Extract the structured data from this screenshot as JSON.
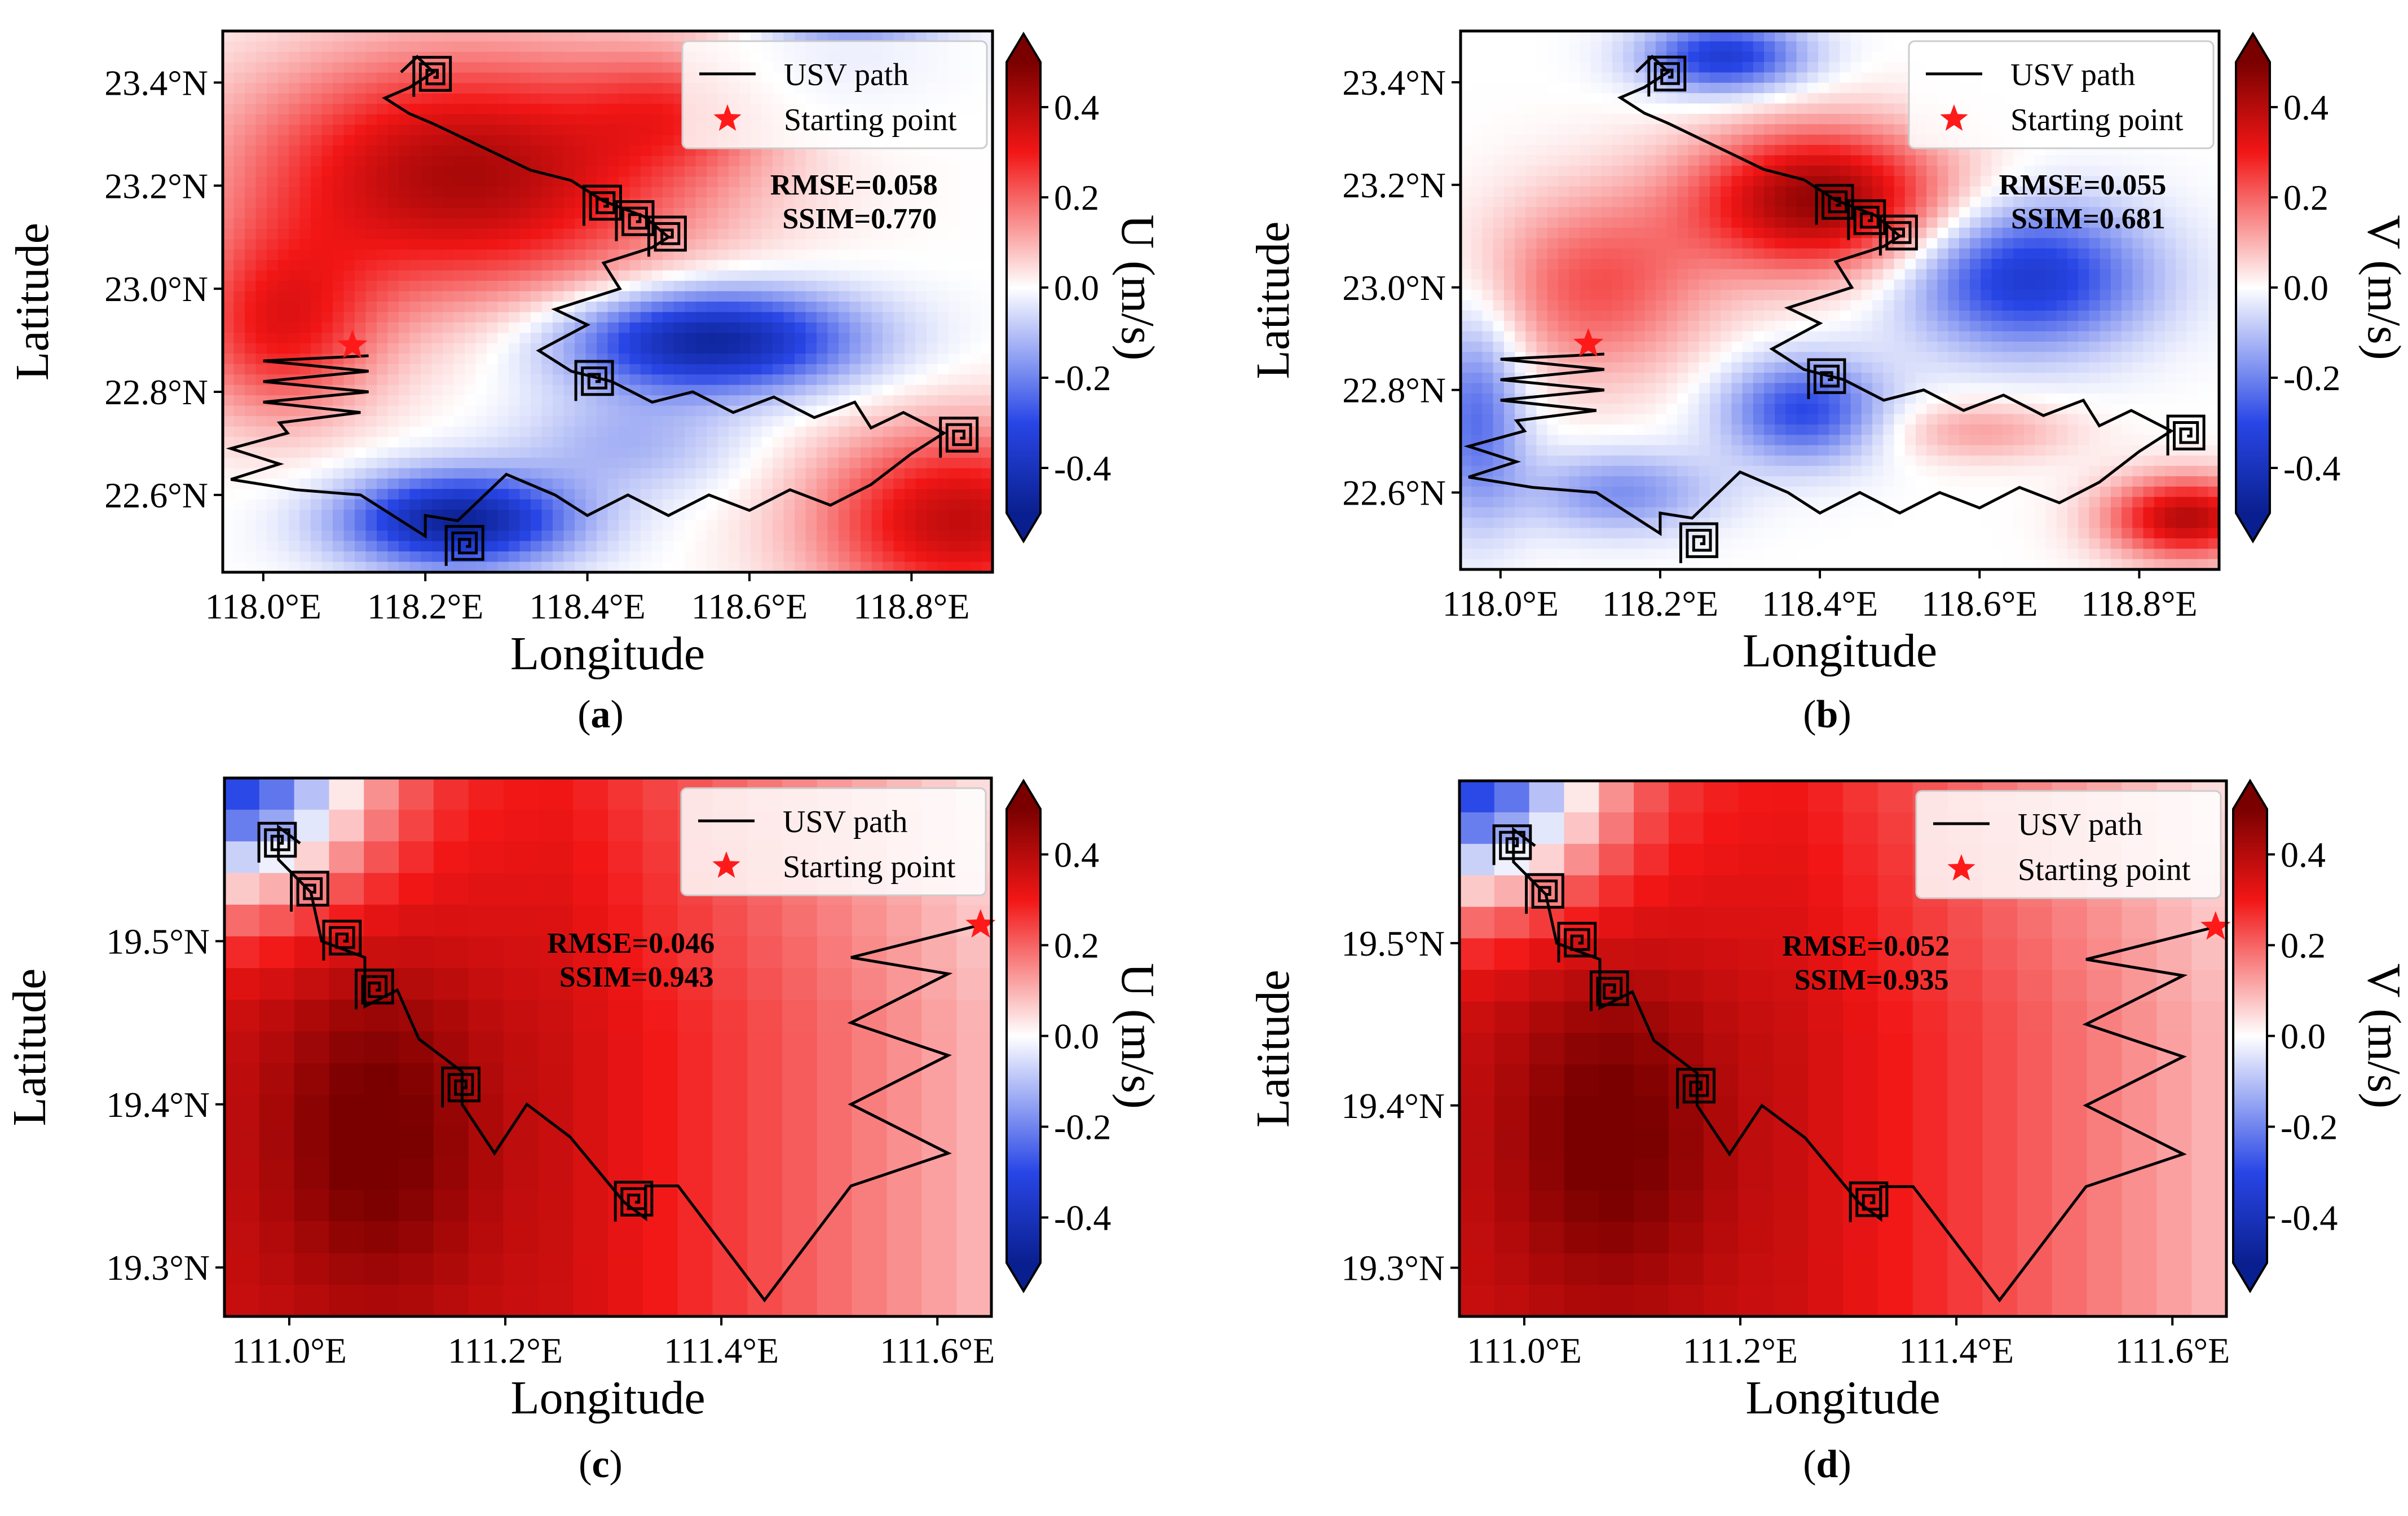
{
  "palette": {
    "negative": "#0a1f8f",
    "neutral": "#ffffff",
    "positive": "#f21616",
    "darkest_positive": "#7a0000",
    "star": "#ff1a1a",
    "path": "#000000"
  },
  "legend": {
    "path_label": "USV path",
    "start_label": "Starting point"
  },
  "chart_data": [
    {
      "type": "heatmap",
      "caption_open": "(",
      "caption_letter": "a",
      "caption_close": ")",
      "component": "U",
      "xlabel": "Longitude",
      "ylabel": "Latitude",
      "colorbar_label": "U (m/s)",
      "xlim": [
        117.95,
        118.9
      ],
      "ylim": [
        22.45,
        23.5
      ],
      "clim": [
        -0.5,
        0.5
      ],
      "xticks": [
        118.0,
        118.2,
        118.4,
        118.6,
        118.8
      ],
      "xtick_labels": [
        "118.0°E",
        "118.2°E",
        "118.4°E",
        "118.6°E",
        "118.8°E"
      ],
      "yticks": [
        22.6,
        22.8,
        23.0,
        23.2,
        23.4
      ],
      "ytick_labels": [
        "22.6°N",
        "22.8°N",
        "23.0°N",
        "23.2°N",
        "23.4°N"
      ],
      "cbar_ticks": [
        -0.4,
        -0.2,
        0.0,
        0.2,
        0.4
      ],
      "cbar_tick_labels": [
        "-0.4",
        "-0.2",
        "0.0",
        "0.2",
        "0.4"
      ],
      "rmse": "RMSE=0.058",
      "ssim": "SSIM=0.770",
      "start_point": [
        118.11,
        22.89
      ],
      "field_blobs": [
        {
          "x": 118.25,
          "y": 23.22,
          "sx": 0.28,
          "sy": 0.24,
          "a": 0.42
        },
        {
          "x": 118.02,
          "y": 22.92,
          "sx": 0.12,
          "sy": 0.18,
          "a": 0.28
        },
        {
          "x": 118.55,
          "y": 22.9,
          "sx": 0.18,
          "sy": 0.1,
          "a": -0.48
        },
        {
          "x": 118.72,
          "y": 23.45,
          "sx": 0.12,
          "sy": 0.1,
          "a": -0.18
        },
        {
          "x": 118.24,
          "y": 22.55,
          "sx": 0.14,
          "sy": 0.09,
          "a": -0.48
        },
        {
          "x": 118.86,
          "y": 22.55,
          "sx": 0.18,
          "sy": 0.18,
          "a": 0.38
        },
        {
          "x": 118.45,
          "y": 22.7,
          "sx": 0.14,
          "sy": 0.1,
          "a": -0.12
        },
        {
          "x": 118.52,
          "y": 23.35,
          "sx": 0.12,
          "sy": 0.12,
          "a": 0.16
        }
      ],
      "path": [
        [
          118.13,
          22.87
        ],
        [
          118.0,
          22.86
        ],
        [
          118.13,
          22.84
        ],
        [
          118.0,
          22.82
        ],
        [
          118.13,
          22.8
        ],
        [
          118.0,
          22.78
        ],
        [
          118.12,
          22.76
        ],
        [
          118.02,
          22.74
        ],
        [
          118.03,
          22.72
        ],
        [
          117.96,
          22.69
        ],
        [
          118.02,
          22.66
        ],
        [
          117.96,
          22.63
        ],
        [
          118.04,
          22.61
        ],
        [
          118.12,
          22.6
        ],
        [
          118.18,
          22.54
        ],
        [
          118.2,
          22.52
        ],
        [
          118.2,
          22.56
        ],
        [
          118.24,
          22.55
        ],
        [
          118.3,
          22.64
        ],
        [
          118.36,
          22.6
        ],
        [
          118.4,
          22.56
        ],
        [
          118.45,
          22.6
        ],
        [
          118.5,
          22.56
        ],
        [
          118.55,
          22.6
        ],
        [
          118.6,
          22.57
        ],
        [
          118.65,
          22.61
        ],
        [
          118.7,
          22.58
        ],
        [
          118.75,
          22.62
        ],
        [
          118.8,
          22.68
        ],
        [
          118.84,
          22.72
        ],
        [
          118.79,
          22.76
        ],
        [
          118.75,
          22.73
        ],
        [
          118.73,
          22.78
        ],
        [
          118.68,
          22.75
        ],
        [
          118.63,
          22.79
        ],
        [
          118.58,
          22.76
        ],
        [
          118.53,
          22.8
        ],
        [
          118.48,
          22.78
        ],
        [
          118.43,
          22.82
        ],
        [
          118.38,
          22.84
        ],
        [
          118.34,
          22.88
        ],
        [
          118.4,
          22.93
        ],
        [
          118.36,
          22.96
        ],
        [
          118.44,
          23.0
        ],
        [
          118.42,
          23.05
        ],
        [
          118.48,
          23.08
        ],
        [
          118.5,
          23.1
        ],
        [
          118.47,
          23.14
        ],
        [
          118.42,
          23.17
        ],
        [
          118.38,
          23.21
        ],
        [
          118.33,
          23.23
        ],
        [
          118.29,
          23.26
        ],
        [
          118.25,
          23.29
        ],
        [
          118.21,
          23.32
        ],
        [
          118.18,
          23.34
        ],
        [
          118.15,
          23.37
        ],
        [
          118.18,
          23.39
        ],
        [
          118.21,
          23.42
        ],
        [
          118.19,
          23.45
        ],
        [
          118.17,
          23.42
        ]
      ],
      "spiral_centers": [
        [
          118.21,
          23.41
        ],
        [
          118.42,
          23.16
        ],
        [
          118.46,
          23.13
        ],
        [
          118.5,
          23.1
        ],
        [
          118.41,
          22.82
        ],
        [
          118.86,
          22.71
        ],
        [
          118.25,
          22.5
        ]
      ]
    },
    {
      "type": "heatmap",
      "caption_open": "(",
      "caption_letter": "b",
      "caption_close": ")",
      "component": "V",
      "xlabel": "Longitude",
      "ylabel": "Latitude",
      "colorbar_label": "V (m/s)",
      "xlim": [
        117.95,
        118.9
      ],
      "ylim": [
        22.45,
        23.5
      ],
      "clim": [
        -0.5,
        0.5
      ],
      "xticks": [
        118.0,
        118.2,
        118.4,
        118.6,
        118.8
      ],
      "xtick_labels": [
        "118.0°E",
        "118.2°E",
        "118.4°E",
        "118.6°E",
        "118.8°E"
      ],
      "yticks": [
        22.6,
        22.8,
        23.0,
        23.2,
        23.4
      ],
      "ytick_labels": [
        "22.6°N",
        "22.8°N",
        "23.0°N",
        "23.2°N",
        "23.4°N"
      ],
      "cbar_ticks": [
        -0.4,
        -0.2,
        0.0,
        0.2,
        0.4
      ],
      "cbar_tick_labels": [
        "-0.4",
        "-0.2",
        "0.0",
        "0.2",
        "0.4"
      ],
      "rmse": "RMSE=0.055",
      "ssim": "SSIM=0.681",
      "start_point": [
        118.11,
        22.89
      ],
      "field_blobs": [
        {
          "x": 118.4,
          "y": 23.17,
          "sx": 0.16,
          "sy": 0.14,
          "a": 0.46
        },
        {
          "x": 118.12,
          "y": 23.0,
          "sx": 0.14,
          "sy": 0.18,
          "a": 0.22
        },
        {
          "x": 118.28,
          "y": 23.45,
          "sx": 0.1,
          "sy": 0.07,
          "a": -0.35
        },
        {
          "x": 118.66,
          "y": 23.02,
          "sx": 0.15,
          "sy": 0.14,
          "a": -0.36
        },
        {
          "x": 117.97,
          "y": 22.75,
          "sx": 0.06,
          "sy": 0.2,
          "a": -0.24
        },
        {
          "x": 118.38,
          "y": 22.76,
          "sx": 0.1,
          "sy": 0.1,
          "a": -0.3
        },
        {
          "x": 118.15,
          "y": 22.6,
          "sx": 0.12,
          "sy": 0.08,
          "a": -0.18
        },
        {
          "x": 118.86,
          "y": 22.55,
          "sx": 0.1,
          "sy": 0.08,
          "a": 0.4
        },
        {
          "x": 118.6,
          "y": 22.72,
          "sx": 0.12,
          "sy": 0.06,
          "a": 0.12
        }
      ],
      "path": [
        [
          118.13,
          22.87
        ],
        [
          118.0,
          22.86
        ],
        [
          118.13,
          22.84
        ],
        [
          118.0,
          22.82
        ],
        [
          118.13,
          22.8
        ],
        [
          118.0,
          22.78
        ],
        [
          118.12,
          22.76
        ],
        [
          118.02,
          22.74
        ],
        [
          118.03,
          22.72
        ],
        [
          117.96,
          22.69
        ],
        [
          118.02,
          22.66
        ],
        [
          117.96,
          22.63
        ],
        [
          118.04,
          22.61
        ],
        [
          118.12,
          22.6
        ],
        [
          118.18,
          22.54
        ],
        [
          118.2,
          22.52
        ],
        [
          118.2,
          22.56
        ],
        [
          118.24,
          22.55
        ],
        [
          118.3,
          22.64
        ],
        [
          118.36,
          22.6
        ],
        [
          118.4,
          22.56
        ],
        [
          118.45,
          22.6
        ],
        [
          118.5,
          22.56
        ],
        [
          118.55,
          22.6
        ],
        [
          118.6,
          22.57
        ],
        [
          118.65,
          22.61
        ],
        [
          118.7,
          22.58
        ],
        [
          118.75,
          22.62
        ],
        [
          118.8,
          22.68
        ],
        [
          118.84,
          22.72
        ],
        [
          118.79,
          22.76
        ],
        [
          118.75,
          22.73
        ],
        [
          118.73,
          22.78
        ],
        [
          118.68,
          22.75
        ],
        [
          118.63,
          22.79
        ],
        [
          118.58,
          22.76
        ],
        [
          118.53,
          22.8
        ],
        [
          118.48,
          22.78
        ],
        [
          118.43,
          22.82
        ],
        [
          118.38,
          22.84
        ],
        [
          118.34,
          22.88
        ],
        [
          118.4,
          22.93
        ],
        [
          118.36,
          22.96
        ],
        [
          118.44,
          23.0
        ],
        [
          118.42,
          23.05
        ],
        [
          118.48,
          23.08
        ],
        [
          118.5,
          23.1
        ],
        [
          118.47,
          23.14
        ],
        [
          118.42,
          23.17
        ],
        [
          118.38,
          23.21
        ],
        [
          118.33,
          23.23
        ],
        [
          118.29,
          23.26
        ],
        [
          118.25,
          23.29
        ],
        [
          118.21,
          23.32
        ],
        [
          118.18,
          23.34
        ],
        [
          118.15,
          23.37
        ],
        [
          118.18,
          23.39
        ],
        [
          118.21,
          23.42
        ],
        [
          118.19,
          23.45
        ],
        [
          118.17,
          23.42
        ]
      ],
      "spiral_centers": [
        [
          118.21,
          23.41
        ],
        [
          118.42,
          23.16
        ],
        [
          118.46,
          23.13
        ],
        [
          118.5,
          23.1
        ],
        [
          118.41,
          22.82
        ],
        [
          118.86,
          22.71
        ],
        [
          118.25,
          22.5
        ]
      ]
    },
    {
      "type": "heatmap",
      "caption_open": "(",
      "caption_letter": "c",
      "caption_close": ")",
      "component": "U",
      "xlabel": "Longitude",
      "ylabel": "Latitude",
      "colorbar_label": "U (m/s)",
      "xlim": [
        110.94,
        111.65
      ],
      "ylim": [
        19.27,
        19.6
      ],
      "clim": [
        -0.5,
        0.5
      ],
      "xticks": [
        111.0,
        111.2,
        111.4,
        111.6
      ],
      "xtick_labels": [
        "111.0°E",
        "111.2°E",
        "111.4°E",
        "111.6°E"
      ],
      "yticks": [
        19.3,
        19.4,
        19.5
      ],
      "ytick_labels": [
        "19.3°N",
        "19.4°N",
        "19.5°N"
      ],
      "cbar_ticks": [
        -0.4,
        -0.2,
        0.0,
        0.2,
        0.4
      ],
      "cbar_tick_labels": [
        "-0.4",
        "-0.2",
        "0.0",
        "0.2",
        "0.4"
      ],
      "rmse": "RMSE=0.046",
      "ssim": "SSIM=0.943",
      "start_point": [
        111.64,
        19.51
      ],
      "path": [
        [
          111.64,
          19.51
        ],
        [
          111.52,
          19.49
        ],
        [
          111.61,
          19.48
        ],
        [
          111.52,
          19.45
        ],
        [
          111.61,
          19.43
        ],
        [
          111.52,
          19.4
        ],
        [
          111.61,
          19.37
        ],
        [
          111.52,
          19.35
        ],
        [
          111.44,
          19.28
        ],
        [
          111.36,
          19.35
        ],
        [
          111.33,
          19.35
        ],
        [
          111.33,
          19.33
        ],
        [
          111.31,
          19.34
        ],
        [
          111.26,
          19.38
        ],
        [
          111.22,
          19.4
        ],
        [
          111.19,
          19.37
        ],
        [
          111.16,
          19.4
        ],
        [
          111.16,
          19.42
        ],
        [
          111.12,
          19.44
        ],
        [
          111.1,
          19.47
        ],
        [
          111.07,
          19.46
        ],
        [
          111.07,
          19.49
        ],
        [
          111.03,
          19.5
        ],
        [
          111.02,
          19.53
        ],
        [
          110.99,
          19.55
        ],
        [
          110.99,
          19.57
        ],
        [
          111.01,
          19.56
        ]
      ],
      "spiral_centers": [
        [
          110.99,
          19.56
        ],
        [
          111.02,
          19.53
        ],
        [
          111.05,
          19.5
        ],
        [
          111.08,
          19.47
        ],
        [
          111.16,
          19.41
        ],
        [
          111.32,
          19.34
        ]
      ],
      "grid_cells": 22
    },
    {
      "type": "heatmap",
      "caption_open": "(",
      "caption_letter": "d",
      "caption_close": ")",
      "component": "V",
      "xlabel": "Longitude",
      "ylabel": "Latitude",
      "colorbar_label": "V (m/s)",
      "xlim": [
        110.94,
        111.65
      ],
      "ylim": [
        19.27,
        19.6
      ],
      "clim": [
        -0.5,
        0.5
      ],
      "xticks": [
        111.0,
        111.2,
        111.4,
        111.6
      ],
      "xtick_labels": [
        "111.0°E",
        "111.2°E",
        "111.4°E",
        "111.6°E"
      ],
      "yticks": [
        19.3,
        19.4,
        19.5
      ],
      "ytick_labels": [
        "19.3°N",
        "19.4°N",
        "19.5°N"
      ],
      "cbar_ticks": [
        -0.4,
        -0.2,
        0.0,
        0.2,
        0.4
      ],
      "cbar_tick_labels": [
        "-0.4",
        "-0.2",
        "0.0",
        "0.2",
        "0.4"
      ],
      "rmse": "RMSE=0.052",
      "ssim": "SSIM=0.935",
      "start_point": [
        111.64,
        19.51
      ],
      "path": [
        [
          111.64,
          19.51
        ],
        [
          111.52,
          19.49
        ],
        [
          111.61,
          19.48
        ],
        [
          111.52,
          19.45
        ],
        [
          111.61,
          19.43
        ],
        [
          111.52,
          19.4
        ],
        [
          111.61,
          19.37
        ],
        [
          111.52,
          19.35
        ],
        [
          111.44,
          19.28
        ],
        [
          111.36,
          19.35
        ],
        [
          111.33,
          19.35
        ],
        [
          111.33,
          19.33
        ],
        [
          111.31,
          19.34
        ],
        [
          111.26,
          19.38
        ],
        [
          111.22,
          19.4
        ],
        [
          111.19,
          19.37
        ],
        [
          111.16,
          19.4
        ],
        [
          111.16,
          19.42
        ],
        [
          111.12,
          19.44
        ],
        [
          111.1,
          19.47
        ],
        [
          111.07,
          19.46
        ],
        [
          111.07,
          19.49
        ],
        [
          111.03,
          19.5
        ],
        [
          111.02,
          19.53
        ],
        [
          110.99,
          19.55
        ],
        [
          110.99,
          19.57
        ],
        [
          111.01,
          19.56
        ]
      ],
      "spiral_centers": [
        [
          110.99,
          19.56
        ],
        [
          111.02,
          19.53
        ],
        [
          111.05,
          19.5
        ],
        [
          111.08,
          19.47
        ],
        [
          111.16,
          19.41
        ],
        [
          111.32,
          19.34
        ]
      ],
      "grid_cells": 22
    }
  ]
}
